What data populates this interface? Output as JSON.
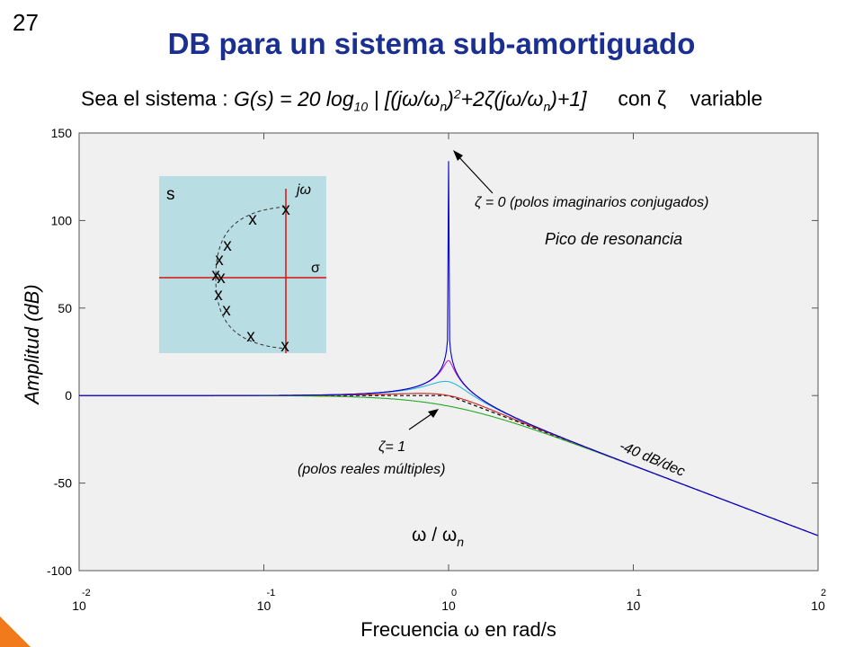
{
  "slide_number": "27",
  "title": "DB para un sistema sub-amortiguado",
  "intro": {
    "prefix": "Sea el sistema :",
    "formula": "G(s) = 20 log10 | [(jω/ωn)2+2ζ(jω/ωn)+1]",
    "suffix_con": "con",
    "suffix_zeta": "ζ",
    "suffix_var": "variable"
  },
  "chart_data": {
    "type": "line",
    "xscale": "log",
    "xlim": [
      0.01,
      100
    ],
    "ylim": [
      -100,
      150
    ],
    "yticks": [
      150,
      100,
      50,
      0,
      -50,
      -100
    ],
    "xticks": [
      {
        "base": "10",
        "exp": "-2"
      },
      {
        "base": "10",
        "exp": "-1"
      },
      {
        "base": "10",
        "exp": "0"
      },
      {
        "base": "10",
        "exp": "1"
      },
      {
        "base": "10",
        "exp": "2"
      }
    ],
    "xlabel": "Frecuencia ω en rad/s",
    "ylabel": "Amplitud (dB)",
    "inner_xlabel": "ω / ωn",
    "grid": false,
    "series": [
      {
        "zeta": 1e-07,
        "color": "#0000cc"
      },
      {
        "zeta": 0.05,
        "color": "#cc22cc"
      },
      {
        "zeta": 0.2,
        "color": "#22bbdd"
      },
      {
        "zeta": 0.5,
        "color": "#cc2222"
      },
      {
        "zeta": 1.0,
        "color": "#22aa22"
      }
    ],
    "asymptote": {
      "slope_label": "-40 dB/dec",
      "color": "#000000"
    },
    "annotations": {
      "zeta0_line": "ζ = 0  (polos imaginarios conjugados)",
      "resonance": "Pico de resonancia",
      "zeta1_line1": "ζ= 1",
      "zeta1_line2": "(polos reales múltiples)"
    }
  },
  "inset": {
    "s_label": "s",
    "jw_label": "jω",
    "sigma_label": "σ",
    "pole_marker": "x",
    "background": "#b8dde3"
  },
  "colors": {
    "title": "#1a2f8f",
    "plot_bg": "#f0f0f0",
    "accent_corner": "#f07a1c",
    "axis_red": "#dd1111"
  }
}
